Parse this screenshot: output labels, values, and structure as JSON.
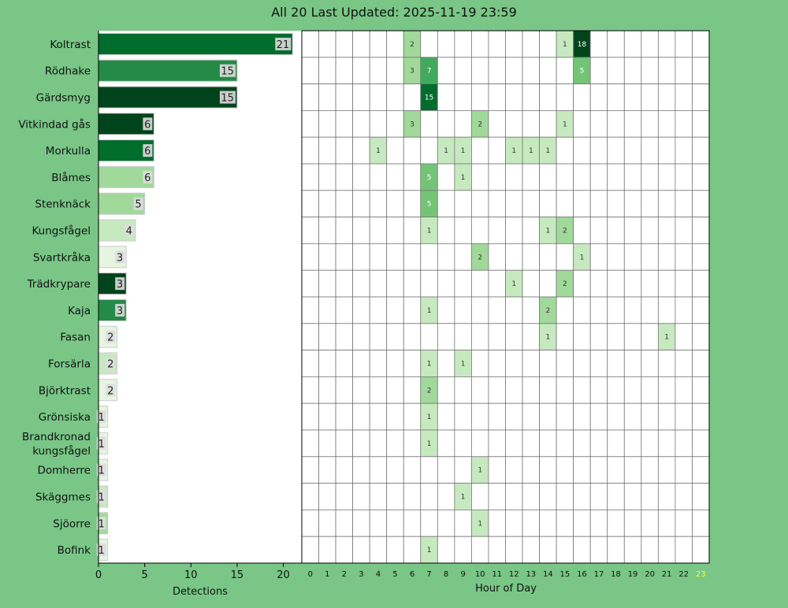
{
  "title": "All 20 Last Updated: 2025-11-19 23:59",
  "colors": {
    "background": "#79c687",
    "current_hour": "#ffff33"
  },
  "chart_data": [
    {
      "type": "bar",
      "orientation": "horizontal",
      "categories": [
        "Koltrast",
        "Rödhake",
        "Gärdsmyg",
        "Vitkindad gås",
        "Morkulla",
        "Blåmes",
        "Stenknäck",
        "Kungsfågel",
        "Svartkråka",
        "Trädkrypare",
        "Kaja",
        "Fasan",
        "Forsärla",
        "Björktrast",
        "Grönsiska",
        "Brandkronad kungsfågel",
        "Domherre",
        "Skäggmes",
        "Sjöorre",
        "Bofink"
      ],
      "values": [
        21,
        15,
        15,
        6,
        6,
        6,
        5,
        4,
        3,
        3,
        3,
        2,
        2,
        2,
        1,
        1,
        1,
        1,
        1,
        1
      ],
      "xlabel": "Detections",
      "xticks": [
        0,
        5,
        10,
        15,
        20
      ],
      "xlim": [
        0,
        22
      ]
    },
    {
      "type": "heatmap",
      "rows": [
        "Koltrast",
        "Rödhake",
        "Gärdsmyg",
        "Vitkindad gås",
        "Morkulla",
        "Blåmes",
        "Stenknäck",
        "Kungsfågel",
        "Svartkråka",
        "Trädkrypare",
        "Kaja",
        "Fasan",
        "Forsärla",
        "Björktrast",
        "Grönsiska",
        "Brandkronad kungsfågel",
        "Domherre",
        "Skäggmes",
        "Sjöorre",
        "Bofink"
      ],
      "columns": [
        "0",
        "1",
        "2",
        "3",
        "4",
        "5",
        "6",
        "7",
        "8",
        "9",
        "10",
        "11",
        "12",
        "13",
        "14",
        "15",
        "16",
        "17",
        "18",
        "19",
        "20",
        "21",
        "22",
        "23"
      ],
      "values": [
        [
          0,
          0,
          0,
          0,
          0,
          0,
          2,
          0,
          0,
          0,
          0,
          0,
          0,
          0,
          0,
          1,
          18,
          0,
          0,
          0,
          0,
          0,
          0,
          0
        ],
        [
          0,
          0,
          0,
          0,
          0,
          0,
          3,
          7,
          0,
          0,
          0,
          0,
          0,
          0,
          0,
          0,
          5,
          0,
          0,
          0,
          0,
          0,
          0,
          0
        ],
        [
          0,
          0,
          0,
          0,
          0,
          0,
          0,
          15,
          0,
          0,
          0,
          0,
          0,
          0,
          0,
          0,
          0,
          0,
          0,
          0,
          0,
          0,
          0,
          0
        ],
        [
          0,
          0,
          0,
          0,
          0,
          0,
          3,
          0,
          0,
          0,
          2,
          0,
          0,
          0,
          0,
          1,
          0,
          0,
          0,
          0,
          0,
          0,
          0,
          0
        ],
        [
          0,
          0,
          0,
          0,
          1,
          0,
          0,
          0,
          1,
          1,
          0,
          0,
          1,
          1,
          1,
          0,
          0,
          0,
          0,
          0,
          0,
          0,
          0,
          0
        ],
        [
          0,
          0,
          0,
          0,
          0,
          0,
          0,
          5,
          0,
          1,
          0,
          0,
          0,
          0,
          0,
          0,
          0,
          0,
          0,
          0,
          0,
          0,
          0,
          0
        ],
        [
          0,
          0,
          0,
          0,
          0,
          0,
          0,
          5,
          0,
          0,
          0,
          0,
          0,
          0,
          0,
          0,
          0,
          0,
          0,
          0,
          0,
          0,
          0,
          0
        ],
        [
          0,
          0,
          0,
          0,
          0,
          0,
          0,
          1,
          0,
          0,
          0,
          0,
          0,
          0,
          1,
          2,
          0,
          0,
          0,
          0,
          0,
          0,
          0,
          0
        ],
        [
          0,
          0,
          0,
          0,
          0,
          0,
          0,
          0,
          0,
          0,
          2,
          0,
          0,
          0,
          0,
          0,
          1,
          0,
          0,
          0,
          0,
          0,
          0,
          0
        ],
        [
          0,
          0,
          0,
          0,
          0,
          0,
          0,
          0,
          0,
          0,
          0,
          0,
          1,
          0,
          0,
          2,
          0,
          0,
          0,
          0,
          0,
          0,
          0,
          0
        ],
        [
          0,
          0,
          0,
          0,
          0,
          0,
          0,
          1,
          0,
          0,
          0,
          0,
          0,
          0,
          2,
          0,
          0,
          0,
          0,
          0,
          0,
          0,
          0,
          0
        ],
        [
          0,
          0,
          0,
          0,
          0,
          0,
          0,
          0,
          0,
          0,
          0,
          0,
          0,
          0,
          1,
          0,
          0,
          0,
          0,
          0,
          0,
          1,
          0,
          0
        ],
        [
          0,
          0,
          0,
          0,
          0,
          0,
          0,
          1,
          0,
          1,
          0,
          0,
          0,
          0,
          0,
          0,
          0,
          0,
          0,
          0,
          0,
          0,
          0,
          0
        ],
        [
          0,
          0,
          0,
          0,
          0,
          0,
          0,
          2,
          0,
          0,
          0,
          0,
          0,
          0,
          0,
          0,
          0,
          0,
          0,
          0,
          0,
          0,
          0,
          0
        ],
        [
          0,
          0,
          0,
          0,
          0,
          0,
          0,
          1,
          0,
          0,
          0,
          0,
          0,
          0,
          0,
          0,
          0,
          0,
          0,
          0,
          0,
          0,
          0,
          0
        ],
        [
          0,
          0,
          0,
          0,
          0,
          0,
          0,
          1,
          0,
          0,
          0,
          0,
          0,
          0,
          0,
          0,
          0,
          0,
          0,
          0,
          0,
          0,
          0,
          0
        ],
        [
          0,
          0,
          0,
          0,
          0,
          0,
          0,
          0,
          0,
          0,
          1,
          0,
          0,
          0,
          0,
          0,
          0,
          0,
          0,
          0,
          0,
          0,
          0,
          0
        ],
        [
          0,
          0,
          0,
          0,
          0,
          0,
          0,
          0,
          0,
          1,
          0,
          0,
          0,
          0,
          0,
          0,
          0,
          0,
          0,
          0,
          0,
          0,
          0,
          0
        ],
        [
          0,
          0,
          0,
          0,
          0,
          0,
          0,
          0,
          0,
          0,
          1,
          0,
          0,
          0,
          0,
          0,
          0,
          0,
          0,
          0,
          0,
          0,
          0,
          0
        ],
        [
          0,
          0,
          0,
          0,
          0,
          0,
          0,
          1,
          0,
          0,
          0,
          0,
          0,
          0,
          0,
          0,
          0,
          0,
          0,
          0,
          0,
          0,
          0,
          0
        ]
      ],
      "xlabel": "Hour of Day",
      "highlight_column": "23",
      "grid": true
    }
  ]
}
